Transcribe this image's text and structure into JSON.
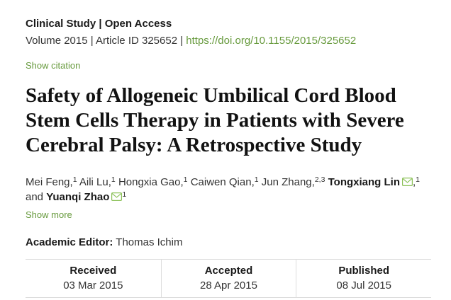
{
  "meta": {
    "category_line": "Clinical Study | Open Access",
    "volume_line": "Volume 2015 | Article ID 325652 |",
    "doi": "https://doi.org/10.1155/2015/325652",
    "show_citation": "Show citation"
  },
  "title": "Safety of Allogeneic Umbilical Cord Blood Stem Cells Therapy in Patients with Severe Cerebral Palsy: A Retrospective Study",
  "authors": {
    "items": [
      {
        "name": "Mei Feng",
        "bold": false,
        "envelope": false,
        "comma": true,
        "sup": "1",
        "after": " "
      },
      {
        "name": "Aili Lu",
        "bold": false,
        "envelope": false,
        "comma": true,
        "sup": "1",
        "after": " "
      },
      {
        "name": "Hongxia Gao",
        "bold": false,
        "envelope": false,
        "comma": true,
        "sup": "1",
        "after": " "
      },
      {
        "name": "Caiwen Qian",
        "bold": false,
        "envelope": false,
        "comma": true,
        "sup": "1",
        "after": " "
      },
      {
        "name": "Jun Zhang",
        "bold": false,
        "envelope": false,
        "comma": true,
        "sup": "2,3",
        "after": " "
      },
      {
        "name": "Tongxiang Lin",
        "bold": true,
        "envelope": true,
        "comma": true,
        "sup": "1",
        "after": " and "
      },
      {
        "name": "Yuanqi Zhao",
        "bold": true,
        "envelope": true,
        "comma": false,
        "sup": "1",
        "after": ""
      }
    ],
    "show_more": "Show more"
  },
  "editor": {
    "label": "Academic Editor:",
    "name": "Thomas Ichim"
  },
  "dates": {
    "columns": [
      {
        "label": "Received",
        "value": "03 Mar 2015"
      },
      {
        "label": "Accepted",
        "value": "28 Apr 2015"
      },
      {
        "label": "Published",
        "value": "08 Jul 2015"
      }
    ]
  },
  "colors": {
    "link_green": "#679a3d",
    "envelope_green": "#8bc158",
    "border_gray": "#dcdcdc",
    "heading_dark": "#1a1a1a",
    "body_text": "#333333"
  }
}
